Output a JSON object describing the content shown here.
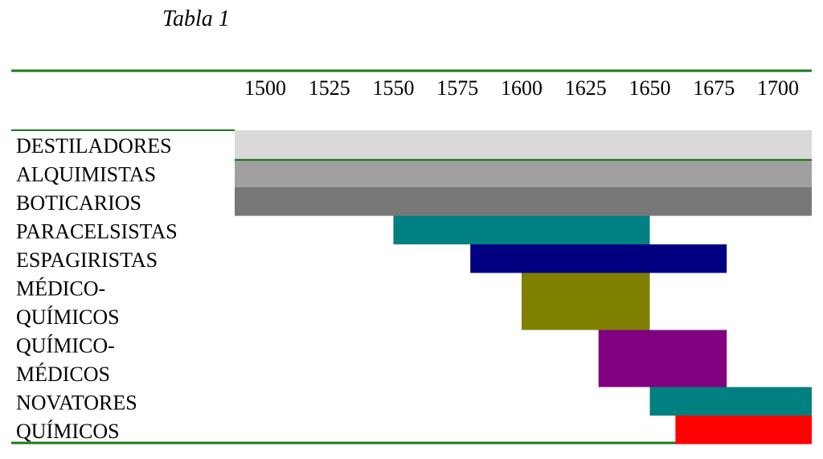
{
  "title": "Tabla 1",
  "chart_data": {
    "type": "gantt",
    "xticks": [
      "1500",
      "1525",
      "1550",
      "1575",
      "1600",
      "1625",
      "1650",
      "1675",
      "1700"
    ],
    "xlim": [
      1500,
      1700
    ],
    "rows": [
      {
        "label_lines": [
          "DESTILADORES"
        ],
        "start": 1500,
        "end": 1700,
        "color": "#d9d9d9"
      },
      {
        "label_lines": [
          "ALQUIMISTAS"
        ],
        "start": 1500,
        "end": 1700,
        "color": "#a0a0a0"
      },
      {
        "label_lines": [
          "BOTICARIOS"
        ],
        "start": 1500,
        "end": 1700,
        "color": "#777777"
      },
      {
        "label_lines": [
          "PARACELSISTAS"
        ],
        "start": 1550,
        "end": 1650,
        "color": "#008080"
      },
      {
        "label_lines": [
          "ESPAGIRISTAS"
        ],
        "start": 1580,
        "end": 1680,
        "color": "#000080"
      },
      {
        "label_lines": [
          "MÉDICO-",
          "QUÍMICOS"
        ],
        "start": 1600,
        "end": 1650,
        "color": "#808000"
      },
      {
        "label_lines": [
          "QUÍMICO-",
          "MÉDICOS"
        ],
        "start": 1630,
        "end": 1680,
        "color": "#800080"
      },
      {
        "label_lines": [
          "NOVATORES"
        ],
        "start": 1650,
        "end": 1700,
        "color": "#008080"
      },
      {
        "label_lines": [
          "QUÍMICOS"
        ],
        "start": 1660,
        "end": 1700,
        "color": "#ff0000"
      }
    ],
    "rule_color": "#1a7a1a"
  }
}
